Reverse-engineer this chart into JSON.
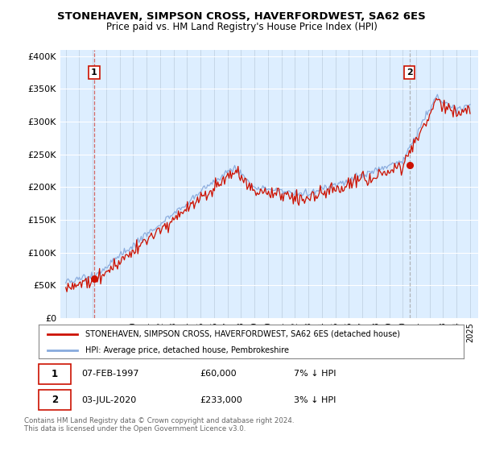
{
  "title1": "STONEHAVEN, SIMPSON CROSS, HAVERFORDWEST, SA62 6ES",
  "title2": "Price paid vs. HM Land Registry's House Price Index (HPI)",
  "ylabel_ticks": [
    "£0",
    "£50K",
    "£100K",
    "£150K",
    "£200K",
    "£250K",
    "£300K",
    "£350K",
    "£400K"
  ],
  "ytick_values": [
    0,
    50000,
    100000,
    150000,
    200000,
    250000,
    300000,
    350000,
    400000
  ],
  "ylim": [
    0,
    410000
  ],
  "sale1_year": 1997.1,
  "sale1_price": 60000,
  "sale1_label": "1",
  "sale2_year": 2020.5,
  "sale2_price": 233000,
  "sale2_label": "2",
  "hpi_color": "#88aadd",
  "price_color": "#cc1100",
  "sale1_vline_color": "#cc1100",
  "sale2_vline_color": "#999999",
  "background_chart": "#ddeeff",
  "background_fig": "#ffffff",
  "legend_text1": "STONEHAVEN, SIMPSON CROSS, HAVERFORDWEST, SA62 6ES (detached house)",
  "legend_text2": "HPI: Average price, detached house, Pembrokeshire",
  "note1_label": "1",
  "note1_date": "07-FEB-1997",
  "note1_price": "£60,000",
  "note1_hpi": "7% ↓ HPI",
  "note2_label": "2",
  "note2_date": "03-JUL-2020",
  "note2_price": "£233,000",
  "note2_hpi": "3% ↓ HPI",
  "footer": "Contains HM Land Registry data © Crown copyright and database right 2024.\nThis data is licensed under the Open Government Licence v3.0."
}
